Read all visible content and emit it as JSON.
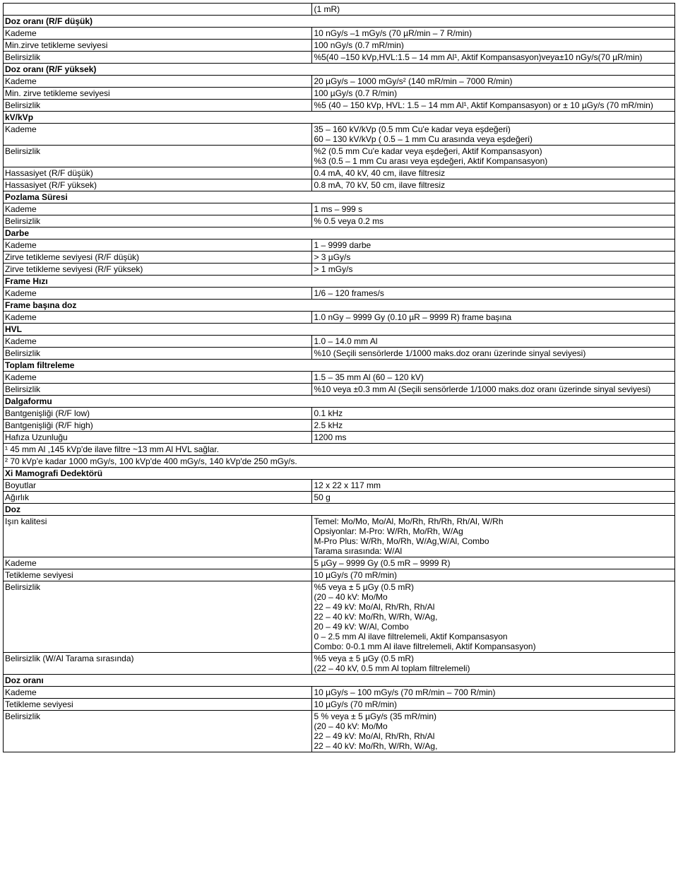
{
  "rows": [
    {
      "type": "kv",
      "label": "",
      "value": "(1 mR)"
    },
    {
      "type": "header",
      "text": "Doz oranı (R/F düşük)"
    },
    {
      "type": "kv",
      "label": "Kademe",
      "value": "10 nGy/s –1 mGy/s (70 µR/min – 7 R/min)"
    },
    {
      "type": "kv",
      "label": "Min.zirve tetikleme seviyesi",
      "value": "100 nGy/s (0.7 mR/min)"
    },
    {
      "type": "kv",
      "label": "Belirsizlik",
      "value": "%5(40 –150 kVp,HVL:1.5 – 14 mm Al¹, Aktif Kompansasyon)veya±10 nGy/s(70 µR/min)"
    },
    {
      "type": "header",
      "text": "Doz oranı (R/F yüksek)"
    },
    {
      "type": "kv",
      "label": "Kademe",
      "value": "20 µGy/s – 1000 mGy/s² (140 mR/min – 7000 R/min)"
    },
    {
      "type": "kv",
      "label": "Min. zirve tetikleme seviyesi",
      "value": "100 µGy/s (0.7 R/min)"
    },
    {
      "type": "kv",
      "label": "Belirsizlik",
      "value": "%5 (40 – 150 kVp, HVL: 1.5 – 14 mm Al¹, Aktif Kompansasyon) or ± 10 µGy/s (70 mR/min)"
    },
    {
      "type": "header",
      "text": "kV/kVp"
    },
    {
      "type": "kv",
      "label": "Kademe",
      "value": "35 – 160 kV/kVp (0.5 mm Cu'e kadar veya eşdeğeri)\n60 – 130 kV/kVp ( 0.5 – 1 mm Cu arasında veya eşdeğeri)"
    },
    {
      "type": "kv",
      "label": "Belirsizlik",
      "value": "%2 (0.5 mm Cu'e kadar veya eşdeğeri, Aktif Kompansasyon)\n%3 (0.5 – 1 mm Cu arası veya eşdeğeri, Aktif Kompansasyon)"
    },
    {
      "type": "kv",
      "label": "Hassasiyet (R/F düşük)",
      "value": "0.4 mA, 40 kV, 40 cm, ilave filtresiz"
    },
    {
      "type": "kv",
      "label": "Hassasiyet (R/F yüksek)",
      "value": "0.8 mA, 70 kV, 50 cm, ilave filtresiz"
    },
    {
      "type": "header",
      "text": "Pozlama Süresi"
    },
    {
      "type": "kv",
      "label": "Kademe",
      "value": "1 ms – 999 s"
    },
    {
      "type": "kv",
      "label": "Belirsizlik",
      "value": "% 0.5 veya 0.2 ms"
    },
    {
      "type": "header",
      "text": "Darbe"
    },
    {
      "type": "kv",
      "label": "Kademe",
      "value": "1 – 9999 darbe"
    },
    {
      "type": "kv",
      "label": "Zirve tetikleme seviyesi (R/F düşük)",
      "value": "> 3 µGy/s"
    },
    {
      "type": "kv",
      "label": "Zirve tetikleme seviyesi (R/F yüksek)",
      "value": "> 1 mGy/s"
    },
    {
      "type": "header",
      "text": "Frame Hızı"
    },
    {
      "type": "kv",
      "label": "Kademe",
      "value": "1/6 – 120 frames/s"
    },
    {
      "type": "header",
      "text": "Frame başına doz"
    },
    {
      "type": "kv",
      "label": "Kademe",
      "value": "1.0 nGy – 9999 Gy (0.10 µR – 9999 R) frame başına"
    },
    {
      "type": "header",
      "text": "HVL"
    },
    {
      "type": "kv",
      "label": "Kademe",
      "value": "1.0 – 14.0 mm Al"
    },
    {
      "type": "kv",
      "label": "Belirsizlik",
      "value": "%10 (Seçili sensörlerde 1/1000 maks.doz oranı üzerinde sinyal seviyesi)"
    },
    {
      "type": "header",
      "text": "Toplam filtreleme"
    },
    {
      "type": "kv",
      "label": "Kademe",
      "value": "1.5 – 35 mm Al (60 – 120 kV)"
    },
    {
      "type": "kv",
      "label": "Belirsizlik",
      "value": "%10 veya ±0.3 mm Al (Seçili sensörlerde 1/1000 maks.doz oranı üzerinde sinyal seviyesi)"
    },
    {
      "type": "header",
      "text": "Dalgaformu"
    },
    {
      "type": "kv",
      "label": "Bantgenişliği (R/F low)",
      "value": "0.1 kHz"
    },
    {
      "type": "kv",
      "label": "Bantgenişliği (R/F high)",
      "value": "2.5 kHz"
    },
    {
      "type": "kv",
      "label": "Hafıza Uzunluğu",
      "value": "1200 ms"
    },
    {
      "type": "full",
      "text": "¹ 45 mm Al ,145 kVp'de ilave filtre ~13 mm Al HVL sağlar."
    },
    {
      "type": "full",
      "text": "² 70 kVp'e kadar 1000 mGy/s, 100 kVp'de 400 mGy/s, 140 kVp'de 250 mGy/s."
    },
    {
      "type": "header",
      "text": "Xi Mamografi Dedektörü"
    },
    {
      "type": "kv",
      "label": "Boyutlar",
      "value": "12 x 22 x 117 mm"
    },
    {
      "type": "kv",
      "label": "Ağırlık",
      "value": "50 g"
    },
    {
      "type": "header",
      "text": "Doz"
    },
    {
      "type": "kv",
      "label": "Işın kalitesi",
      "value": "Temel: Mo/Mo, Mo/Al, Mo/Rh, Rh/Rh, Rh/Al, W/Rh\nOpsiyonlar: M-Pro: W/Rh, Mo/Rh, W/Ag\nM-Pro Plus: W/Rh, Mo/Rh, W/Ag,W/Al, Combo\nTarama sırasında: W/Al"
    },
    {
      "type": "kv",
      "label": "Kademe",
      "value": "5 µGy – 9999 Gy (0.5 mR – 9999 R)"
    },
    {
      "type": "kv",
      "label": "Tetikleme seviyesi",
      "value": "10 µGy/s (70 mR/min)"
    },
    {
      "type": "kv",
      "label": "Belirsizlik",
      "value": "%5 veya ± 5 µGy (0.5 mR)\n(20 – 40 kV: Mo/Mo\n22 – 49 kV: Mo/Al, Rh/Rh, Rh/Al\n22 – 40 kV: Mo/Rh, W/Rh, W/Ag,\n20 – 49 kV: W/Al, Combo\n0 – 2.5 mm Al ilave filtrelemeli, Aktif Kompansasyon\nCombo: 0-0.1 mm Al ilave filtrelemeli, Aktif Kompansasyon)"
    },
    {
      "type": "kv",
      "label": "Belirsizlik (W/Al Tarama sırasında)",
      "value": "%5  veya ± 5 µGy (0.5 mR)\n(22 – 40 kV, 0.5 mm Al toplam filtrelemeli)"
    },
    {
      "type": "header",
      "text": "Doz oranı"
    },
    {
      "type": "kv",
      "label": "Kademe",
      "value": "10 µGy/s – 100 mGy/s (70 mR/min – 700 R/min)"
    },
    {
      "type": "kv",
      "label": "Tetikleme seviyesi",
      "value": "10 µGy/s (70 mR/min)"
    },
    {
      "type": "kv",
      "label": "Belirsizlik",
      "value": "5 % veya ± 5 µGy/s (35 mR/min)\n(20 – 40 kV: Mo/Mo\n22 – 49 kV: Mo/Al, Rh/Rh, Rh/Al\n22 – 40 kV: Mo/Rh, W/Rh, W/Ag,"
    }
  ]
}
